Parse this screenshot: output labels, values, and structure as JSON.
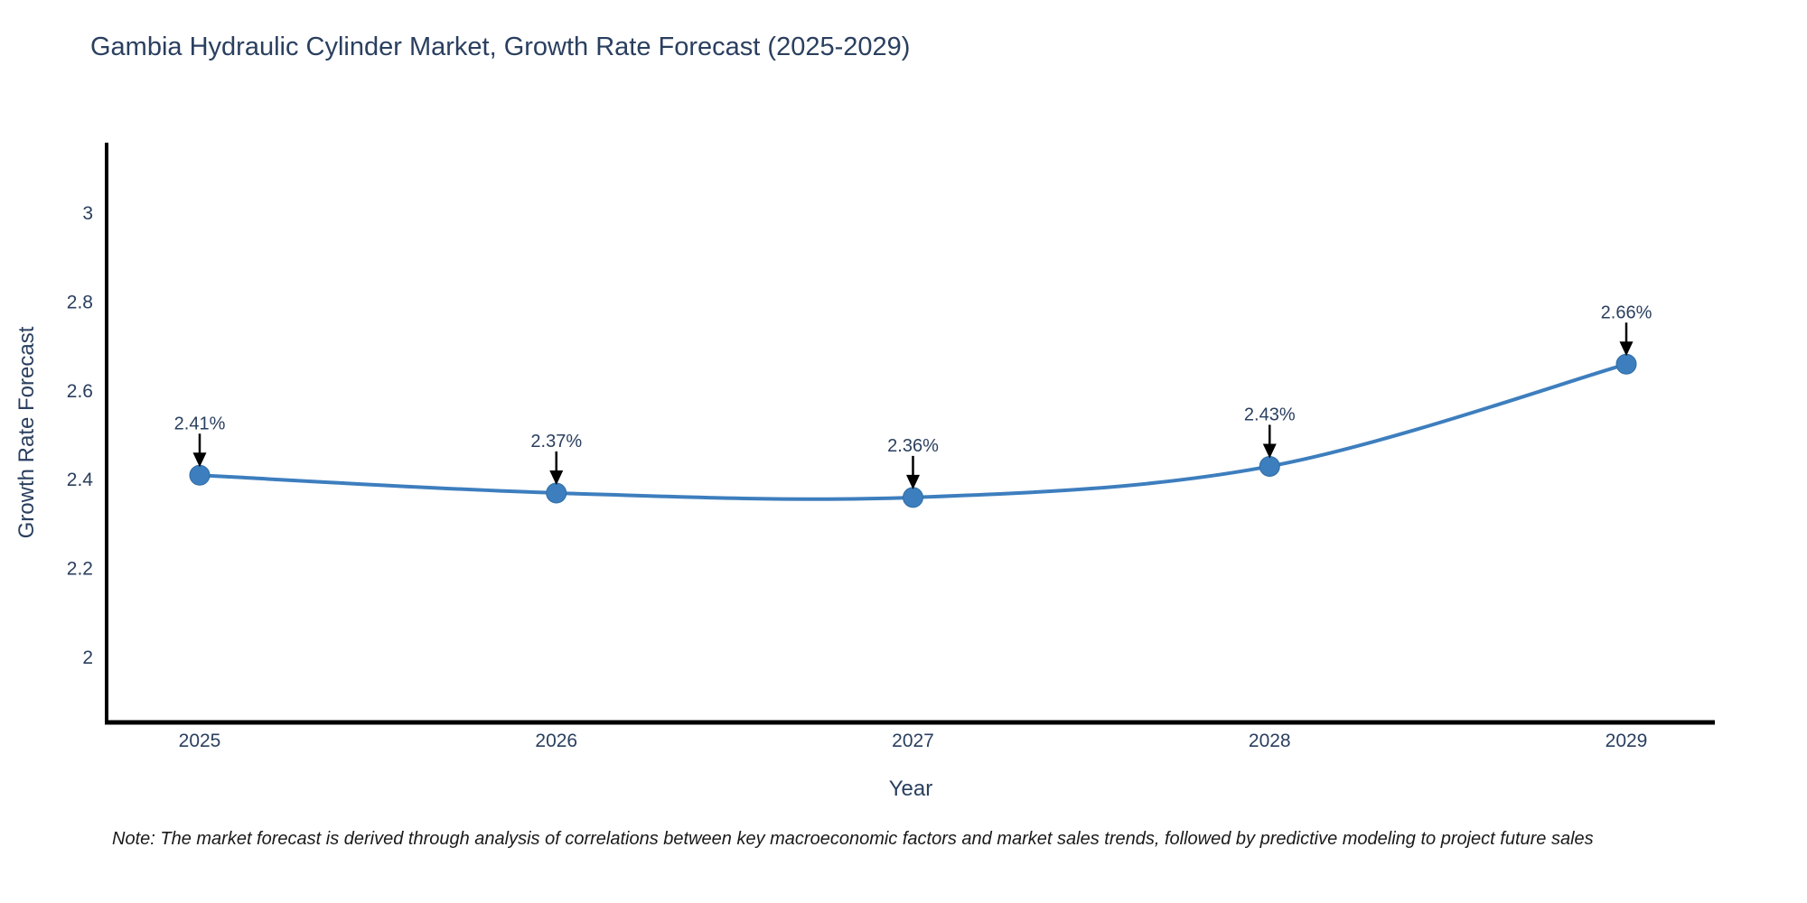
{
  "title": "Gambia Hydraulic Cylinder Market, Growth Rate Forecast (2025-2029)",
  "note": "Note: The market forecast is derived through analysis of correlations between key macroeconomic factors and market sales trends, followed by predictive modeling to project future sales",
  "chart_data": {
    "type": "line",
    "title": "Gambia Hydraulic Cylinder Market, Growth Rate Forecast (2025-2029)",
    "xlabel": "Year",
    "ylabel": "Growth Rate Forecast",
    "x": [
      "2025",
      "2026",
      "2027",
      "2028",
      "2029"
    ],
    "values": [
      2.41,
      2.37,
      2.36,
      2.43,
      2.66
    ],
    "point_labels": [
      "2.41%",
      "2.37%",
      "2.36%",
      "2.43%",
      "2.66%"
    ],
    "yticks": [
      "2",
      "2.2",
      "2.4",
      "2.6",
      "2.8",
      "3"
    ],
    "ytick_values": [
      2,
      2.2,
      2.4,
      2.6,
      2.8,
      3
    ],
    "ylim": [
      1.85,
      3.17
    ],
    "grid": false,
    "legend": "none",
    "line_shape": "spline",
    "annotation_style": "value-label-with-down-arrow",
    "colors": {
      "line": "#3d7ebe",
      "marker": "#3d7ebe",
      "marker_border": "#2e6da4",
      "arrow": "#000000",
      "text": "#2a3f5f",
      "axis_line": "#000000",
      "background": "#ffffff"
    }
  }
}
